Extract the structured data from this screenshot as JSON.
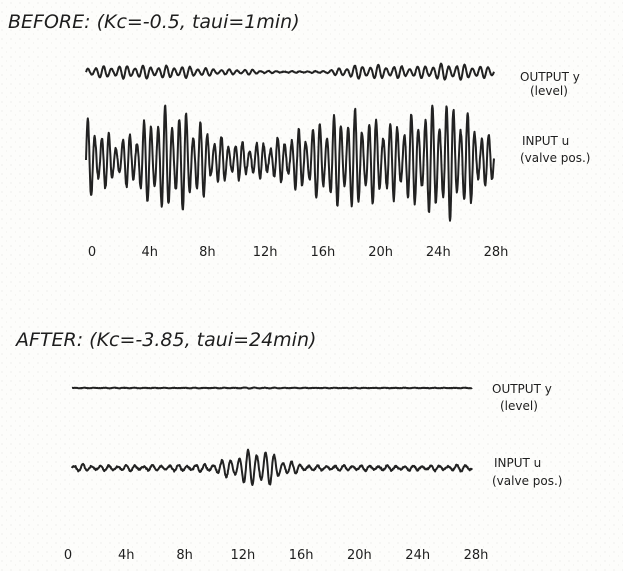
{
  "chart_data": [
    {
      "type": "line",
      "title": "BEFORE: (Kc=-0.5, taui=1min)",
      "x_ticks": [
        "0",
        "4h",
        "8h",
        "12h",
        "16h",
        "20h",
        "24h",
        "28h"
      ],
      "xlim": [
        0,
        28
      ],
      "series": [
        {
          "name": "OUTPUT y (level)",
          "name_lines": [
            "OUTPUT y",
            "(level)"
          ],
          "x": [
            0,
            1,
            2,
            3,
            4,
            5,
            6,
            7,
            8,
            9,
            10,
            11,
            12,
            13,
            14,
            15,
            16,
            17,
            18,
            19,
            20,
            21,
            22,
            23,
            24,
            25,
            26,
            27,
            28
          ],
          "amp": [
            0.55,
            0.65,
            0.7,
            0.75,
            0.75,
            0.7,
            0.7,
            0.65,
            0.5,
            0.35,
            0.3,
            0.3,
            0.2,
            0.1,
            0.1,
            0.1,
            0.1,
            0.3,
            0.7,
            0.8,
            0.8,
            0.75,
            0.65,
            0.7,
            0.9,
            1.0,
            0.85,
            0.7,
            0.6
          ]
        },
        {
          "name": "INPUT u (valve pos.)",
          "name_lines": [
            "INPUT u",
            "(valve pos.)"
          ],
          "x": [
            0,
            1,
            2,
            3,
            4,
            5,
            6,
            7,
            8,
            9,
            10,
            11,
            12,
            13,
            14,
            15,
            16,
            17,
            18,
            19,
            20,
            21,
            22,
            23,
            24,
            25,
            26,
            27,
            28
          ],
          "amp": [
            0.7,
            0.55,
            0.35,
            0.45,
            0.65,
            0.85,
            0.9,
            0.8,
            0.6,
            0.4,
            0.35,
            0.3,
            0.3,
            0.35,
            0.45,
            0.55,
            0.65,
            0.75,
            0.85,
            0.8,
            0.7,
            0.65,
            0.7,
            0.85,
            0.95,
            1.0,
            0.85,
            0.55,
            0.35
          ]
        }
      ]
    },
    {
      "type": "line",
      "title": "AFTER: (Kc=-3.85, taui=24min)",
      "x_ticks": [
        "0",
        "4h",
        "8h",
        "12h",
        "16h",
        "20h",
        "24h",
        "28h"
      ],
      "xlim": [
        0,
        28
      ],
      "series": [
        {
          "name": "OUTPUT y (level)",
          "name_lines": [
            "OUTPUT y",
            "(level)"
          ],
          "x": [
            0,
            1,
            2,
            3,
            4,
            5,
            6,
            7,
            8,
            9,
            10,
            11,
            12,
            13,
            14,
            15,
            16,
            17,
            18,
            19,
            20,
            21,
            22,
            23,
            24,
            25,
            26,
            27,
            28
          ],
          "amp": [
            0.05,
            0.05,
            0.06,
            0.06,
            0.06,
            0.05,
            0.06,
            0.05,
            0.05,
            0.05,
            0.05,
            0.05,
            0.08,
            0.12,
            0.07,
            0.05,
            0.05,
            0.05,
            0.05,
            0.05,
            0.05,
            0.05,
            0.05,
            0.05,
            0.05,
            0.05,
            0.05,
            0.05,
            0.05
          ]
        },
        {
          "name": "INPUT u (valve pos.)",
          "name_lines": [
            "INPUT u",
            "(valve pos.)"
          ],
          "x": [
            0,
            1,
            2,
            3,
            4,
            5,
            6,
            7,
            8,
            9,
            10,
            11,
            12,
            13,
            14,
            15,
            16,
            17,
            18,
            19,
            20,
            21,
            22,
            23,
            24,
            25,
            26,
            27,
            28
          ],
          "amp": [
            0.12,
            0.14,
            0.1,
            0.1,
            0.12,
            0.1,
            0.12,
            0.12,
            0.12,
            0.14,
            0.2,
            0.4,
            0.6,
            0.9,
            0.6,
            0.3,
            0.16,
            0.1,
            0.1,
            0.1,
            0.1,
            0.1,
            0.1,
            0.1,
            0.1,
            0.1,
            0.1,
            0.12,
            0.14
          ]
        }
      ]
    }
  ]
}
